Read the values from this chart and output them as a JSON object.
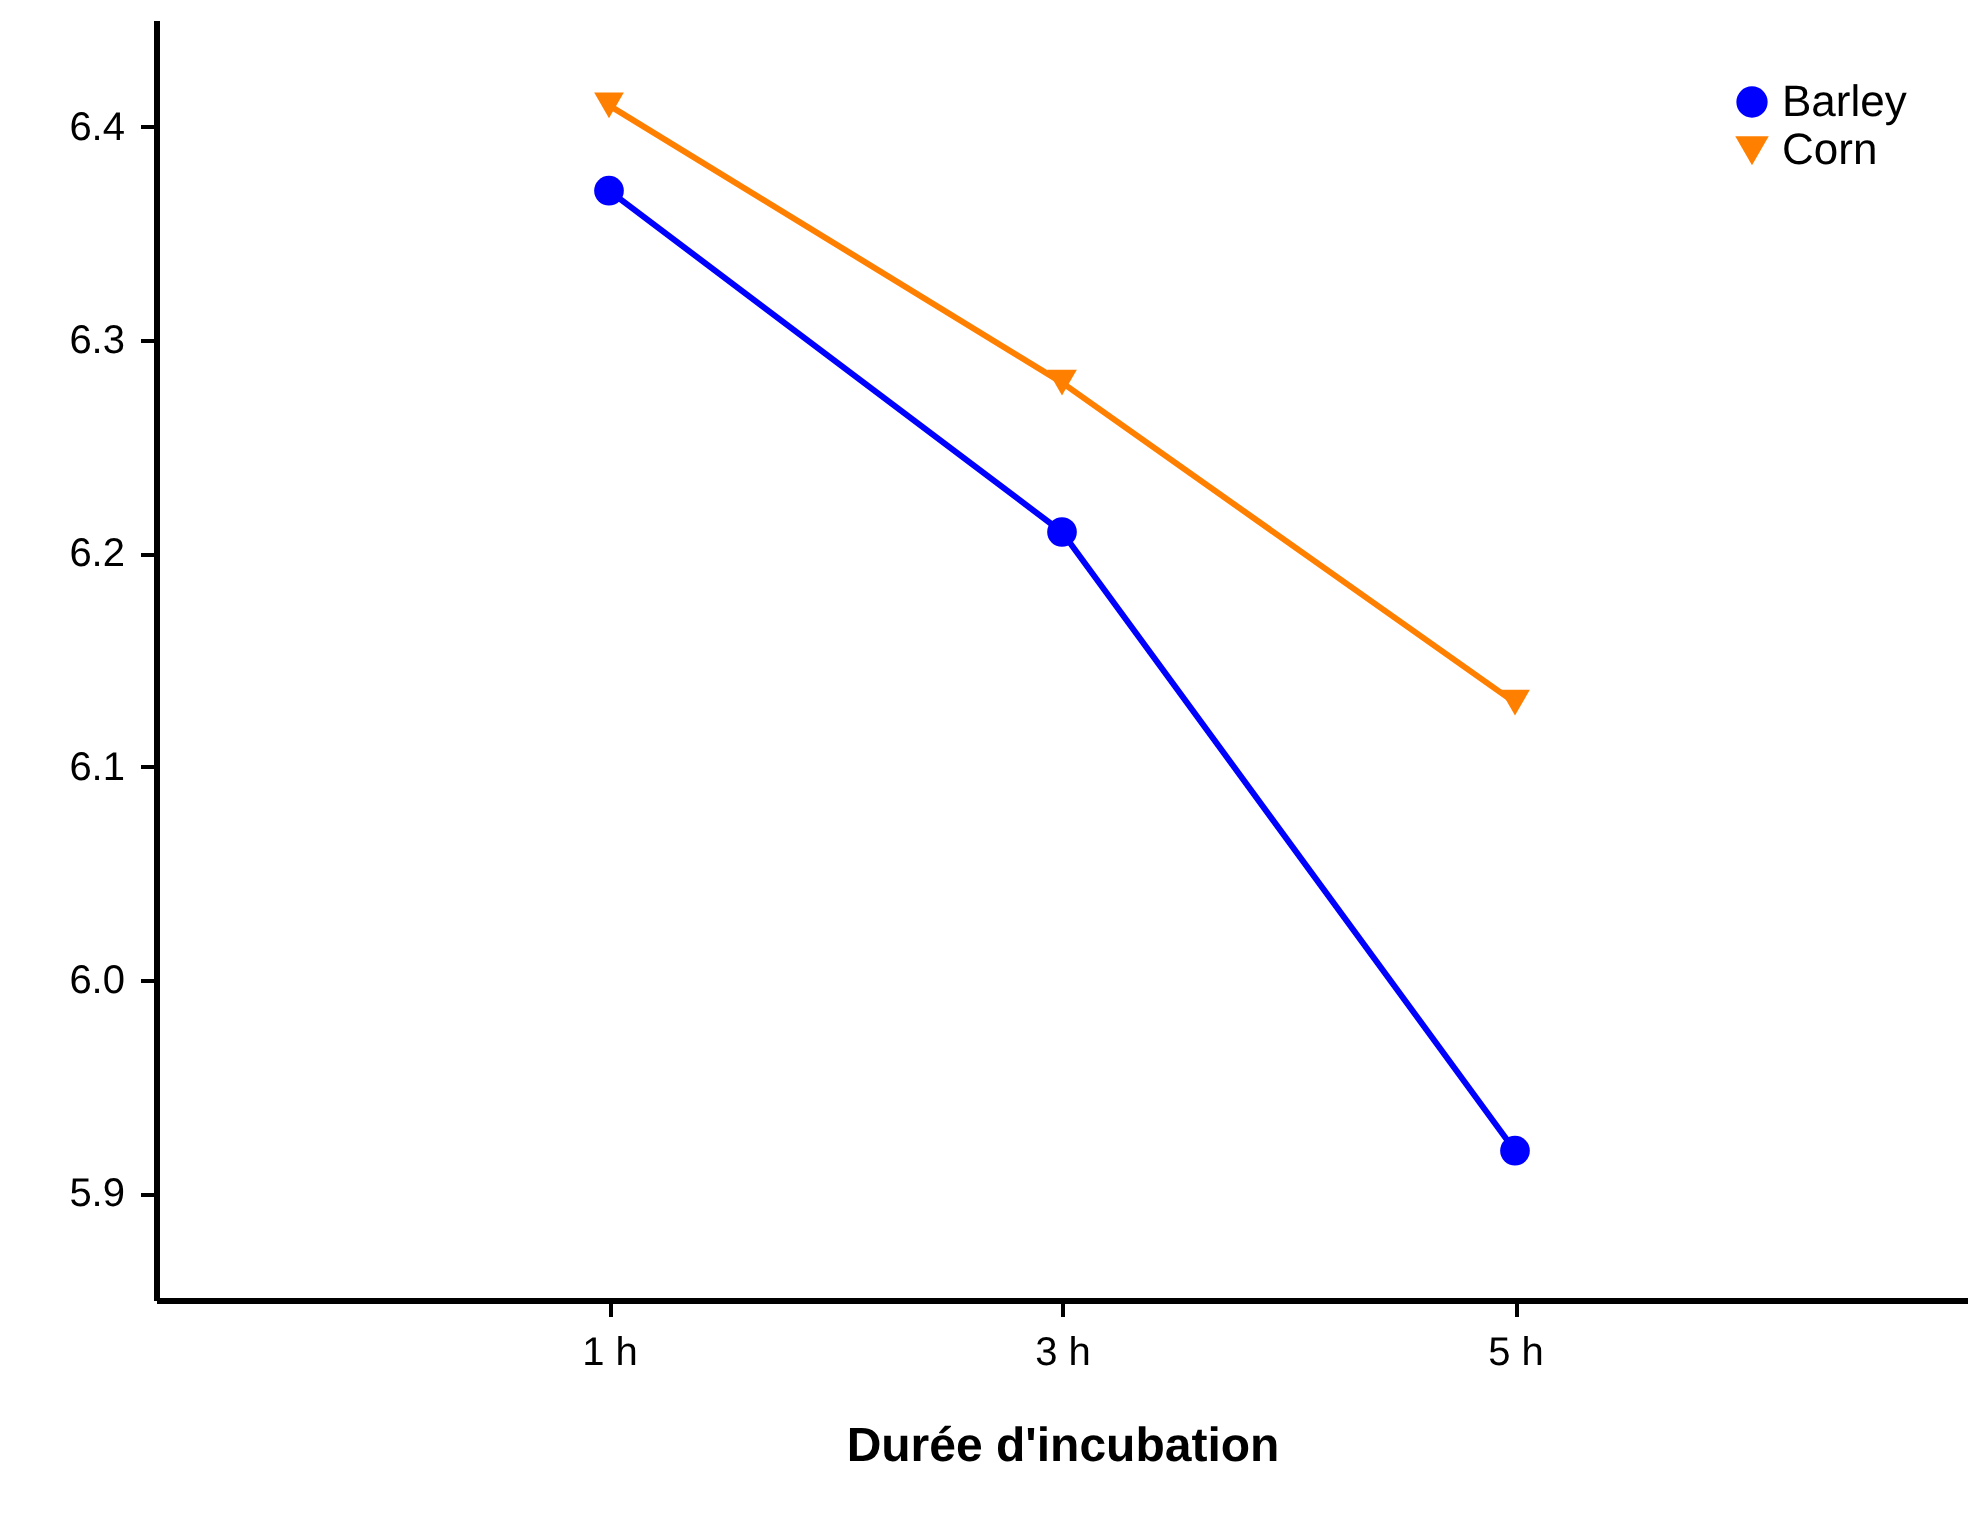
{
  "chart_data": {
    "type": "line",
    "xlabel": "Durée d'incubation",
    "categories": [
      "1 h",
      "3 h",
      "5 h"
    ],
    "series": [
      {
        "name": "Barley",
        "color": "#0000ff",
        "marker": "circle",
        "values": [
          6.37,
          6.21,
          5.92
        ]
      },
      {
        "name": "Corn",
        "color": "#ff8000",
        "marker": "triangle",
        "values": [
          6.41,
          6.28,
          6.13
        ]
      }
    ],
    "ylim": [
      5.85,
      6.45
    ],
    "yticks": [
      {
        "value": 5.9,
        "label": "5.9"
      },
      {
        "value": 6,
        "label": "6.0"
      },
      {
        "value": 6.1,
        "label": "6.1"
      },
      {
        "value": 6.2,
        "label": "6.2"
      },
      {
        "value": 6.3,
        "label": "6.3"
      },
      {
        "value": 6.4,
        "label": "6.4"
      }
    ],
    "grid": false,
    "legend": "top right",
    "line_style": "solid"
  }
}
